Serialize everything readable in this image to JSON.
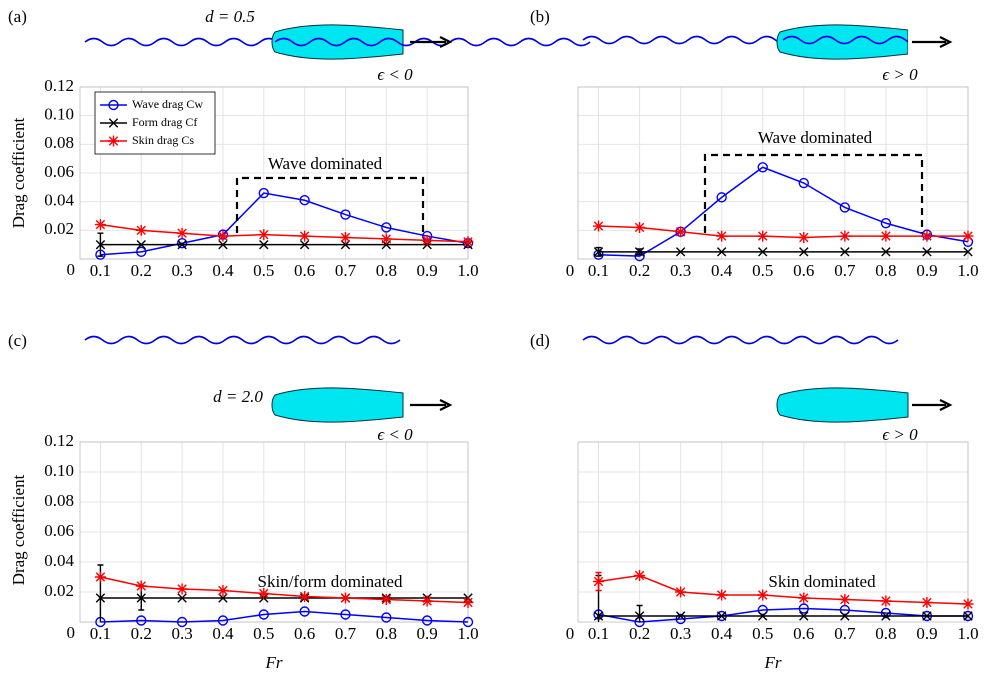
{
  "chart_data": [
    {
      "type": "line",
      "panel_label": "(a)",
      "depth_label": "d = 0.5",
      "epsilon_label": "ϵ < 0",
      "annotation": "Wave dominated",
      "ylabel": "Drag coefficient",
      "x": [
        0.1,
        0.2,
        0.3,
        0.4,
        0.5,
        0.6,
        0.7,
        0.8,
        0.9,
        1.0
      ],
      "xlim": [
        0.05,
        1
      ],
      "xticks": [
        0.1,
        0.2,
        0.3,
        0.4,
        0.5,
        0.6,
        0.7,
        0.8,
        0.9,
        {
          "value": 1,
          "label": "1.0"
        }
      ],
      "ylim": [
        0,
        0.12
      ],
      "yticks": [
        0,
        0.02,
        0.04,
        0.06,
        0.08,
        {
          "value": 0.1,
          "label": "0.10"
        },
        0.12
      ],
      "grid": true,
      "legend": "upper left",
      "series": [
        {
          "name": "Wave drag Cw",
          "color": "#0000ff",
          "marker": "circle",
          "values": [
            0.003,
            0.005,
            0.011,
            0.017,
            0.046,
            0.041,
            0.031,
            0.022,
            0.016,
            0.011
          ]
        },
        {
          "name": "Form drag Cf",
          "color": "#000000",
          "marker": "x",
          "values": [
            0.01,
            0.01,
            0.01,
            0.01,
            0.01,
            0.01,
            0.01,
            0.01,
            0.01,
            0.01
          ],
          "errors": [
            0.008,
            null,
            null,
            null,
            null,
            null,
            null,
            null,
            null,
            null
          ]
        },
        {
          "name": "Skin drag Cs",
          "color": "#ff0000",
          "marker": "asterisk",
          "values": [
            0.024,
            0.02,
            0.018,
            0.016,
            0.017,
            0.016,
            0.015,
            0.014,
            0.013,
            0.012
          ]
        }
      ]
    },
    {
      "type": "line",
      "panel_label": "(b)",
      "epsilon_label": "ϵ > 0",
      "annotation": "Wave dominated",
      "x": [
        0.1,
        0.2,
        0.3,
        0.4,
        0.5,
        0.6,
        0.7,
        0.8,
        0.9,
        1.0
      ],
      "xlim": [
        0.05,
        1
      ],
      "xticks": [
        0,
        0.1,
        0.2,
        0.3,
        0.4,
        0.5,
        0.6,
        0.7,
        0.8,
        0.9,
        {
          "value": 1,
          "label": "1.0"
        }
      ],
      "ylim": [
        0,
        0.12
      ],
      "yticks": [],
      "ygrid": [
        0.02,
        0.04,
        0.06,
        0.08,
        0.1,
        0.12
      ],
      "grid": true,
      "series": [
        {
          "color": "#0000ff",
          "marker": "circle",
          "values": [
            0.003,
            0.002,
            0.019,
            0.043,
            0.064,
            0.053,
            0.036,
            0.025,
            0.017,
            0.012
          ]
        },
        {
          "color": "#000000",
          "marker": "x",
          "values": [
            0.005,
            0.005,
            0.005,
            0.005,
            0.005,
            0.005,
            0.005,
            0.005,
            0.005,
            0.005
          ],
          "errors": [
            0.003,
            0.002,
            null,
            null,
            null,
            null,
            null,
            null,
            null,
            null
          ]
        },
        {
          "color": "#ff0000",
          "marker": "asterisk",
          "values": [
            0.023,
            0.022,
            0.019,
            0.016,
            0.016,
            0.015,
            0.016,
            0.016,
            0.016,
            0.016
          ]
        }
      ]
    },
    {
      "type": "line",
      "panel_label": "(c)",
      "depth_label": "d = 2.0",
      "epsilon_label": "ϵ < 0",
      "annotation": "Skin/form dominated",
      "ylabel": "Drag coefficient",
      "xlabel": "Fr",
      "x": [
        0.1,
        0.2,
        0.3,
        0.4,
        0.5,
        0.6,
        0.7,
        0.8,
        0.9,
        1.0
      ],
      "xlim": [
        0.05,
        1
      ],
      "xticks": [
        0.1,
        0.2,
        0.3,
        0.4,
        0.5,
        0.6,
        0.7,
        0.8,
        0.9,
        {
          "value": 1,
          "label": "1.0"
        }
      ],
      "ylim": [
        0,
        0.12
      ],
      "yticks": [
        0,
        0.02,
        0.04,
        0.06,
        0.08,
        {
          "value": 0.1,
          "label": "0.10"
        },
        0.12
      ],
      "grid": true,
      "series": [
        {
          "color": "#0000ff",
          "marker": "circle",
          "values": [
            0.0,
            0.001,
            0.0,
            0.001,
            0.005,
            0.007,
            0.005,
            0.003,
            0.001,
            0.0
          ]
        },
        {
          "color": "#000000",
          "marker": "x",
          "values": [
            0.016,
            0.016,
            0.016,
            0.016,
            0.016,
            0.016,
            0.016,
            0.016,
            0.016,
            0.016
          ],
          "errors": [
            0.022,
            0.008,
            null,
            null,
            null,
            null,
            null,
            null,
            null,
            null
          ]
        },
        {
          "color": "#ff0000",
          "marker": "asterisk",
          "values": [
            0.03,
            0.024,
            0.022,
            0.021,
            0.019,
            0.017,
            0.016,
            0.015,
            0.014,
            0.013
          ]
        }
      ]
    },
    {
      "type": "line",
      "panel_label": "(d)",
      "epsilon_label": "ϵ > 0",
      "annotation": "Skin dominated",
      "xlabel": "Fr",
      "x": [
        0.1,
        0.2,
        0.3,
        0.4,
        0.5,
        0.6,
        0.7,
        0.8,
        0.9,
        1.0
      ],
      "xlim": [
        0.05,
        1
      ],
      "xticks": [
        0,
        0.1,
        0.2,
        0.3,
        0.4,
        0.5,
        0.6,
        0.7,
        0.8,
        0.9,
        {
          "value": 1,
          "label": "1.0"
        }
      ],
      "ylim": [
        0,
        0.12
      ],
      "yticks": [],
      "ygrid": [
        0.02,
        0.04,
        0.06,
        0.08,
        0.1,
        0.12
      ],
      "grid": true,
      "series": [
        {
          "color": "#0000ff",
          "marker": "circle",
          "values": [
            0.005,
            0.0,
            0.002,
            0.004,
            0.008,
            0.009,
            0.008,
            0.006,
            0.004,
            0.004
          ]
        },
        {
          "color": "#000000",
          "marker": "x",
          "values": [
            0.004,
            0.004,
            0.004,
            0.004,
            0.004,
            0.004,
            0.004,
            0.004,
            0.004,
            0.004
          ],
          "errors": [
            0.027,
            0.007,
            null,
            null,
            null,
            null,
            null,
            null,
            null,
            null
          ]
        },
        {
          "color": "#ff0000",
          "marker": "asterisk",
          "values": [
            0.027,
            0.031,
            0.02,
            0.018,
            0.018,
            0.016,
            0.015,
            0.014,
            0.013,
            0.012
          ],
          "errors": [
            0.006,
            null,
            null,
            null,
            null,
            null,
            null,
            null,
            null,
            null
          ]
        }
      ]
    }
  ]
}
